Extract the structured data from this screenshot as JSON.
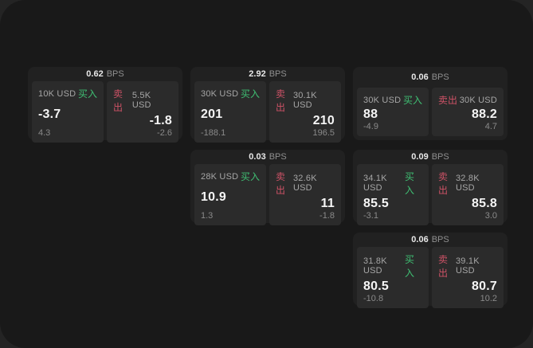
{
  "labels": {
    "bps_unit": "BPS",
    "buy": "买入",
    "sell": "卖出"
  },
  "colors": {
    "page_bg": "#242424",
    "surface_bg": "#191919",
    "buy": "#3fbf73",
    "sell": "#cd5266"
  },
  "cards": [
    {
      "bps": "0.62",
      "grid": {
        "row": 1,
        "col": 1
      },
      "buy": {
        "amount": "10K USD",
        "price": "-3.7",
        "delta": "4.3"
      },
      "sell": {
        "amount": "5.5K USD",
        "price": "-1.8",
        "delta": "-2.6"
      }
    },
    {
      "bps": "2.92",
      "grid": {
        "row": 1,
        "col": 2
      },
      "buy": {
        "amount": "30K USD",
        "price": "201",
        "delta": "-188.1"
      },
      "sell": {
        "amount": "30.1K USD",
        "price": "210",
        "delta": "196.5"
      }
    },
    {
      "bps": "0.06",
      "grid": {
        "row": 1,
        "col": 3
      },
      "buy": {
        "amount": "30K USD",
        "price": "88",
        "delta": "-4.9"
      },
      "sell": {
        "amount": "30K USD",
        "price": "88.2",
        "delta": "4.7"
      }
    },
    {
      "bps": "0.03",
      "grid": {
        "row": 2,
        "col": 2
      },
      "buy": {
        "amount": "28K USD",
        "price": "10.9",
        "delta": "1.3"
      },
      "sell": {
        "amount": "32.6K USD",
        "price": "11",
        "delta": "-1.8"
      }
    },
    {
      "bps": "0.09",
      "grid": {
        "row": 2,
        "col": 3
      },
      "buy": {
        "amount": "34.1K USD",
        "price": "85.5",
        "delta": "-3.1"
      },
      "sell": {
        "amount": "32.8K USD",
        "price": "85.8",
        "delta": "3.0"
      }
    },
    {
      "bps": "0.06",
      "grid": {
        "row": 3,
        "col": 3
      },
      "buy": {
        "amount": "31.8K USD",
        "price": "80.5",
        "delta": "-10.8"
      },
      "sell": {
        "amount": "39.1K USD",
        "price": "80.7",
        "delta": "10.2"
      }
    }
  ]
}
